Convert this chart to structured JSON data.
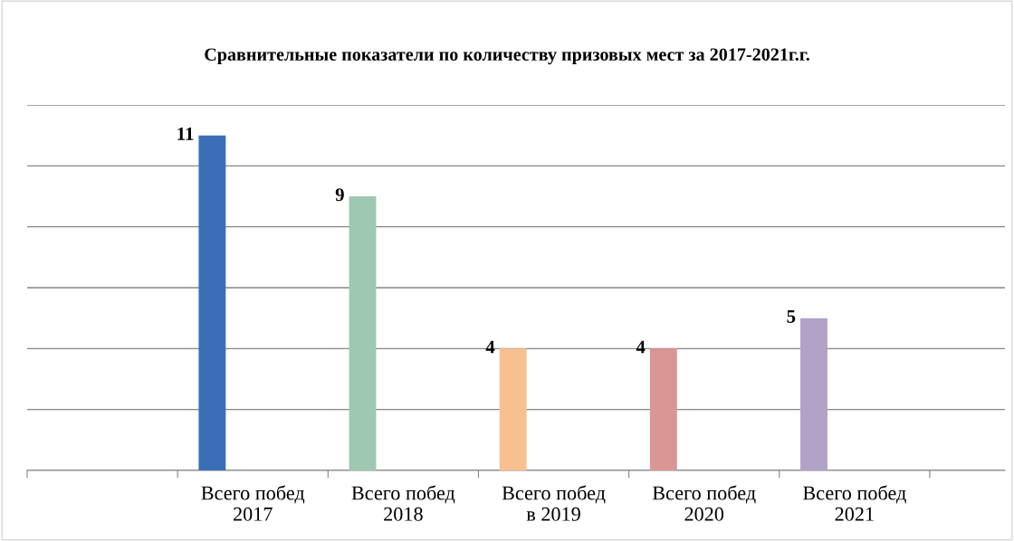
{
  "chart_data": {
    "type": "bar",
    "title": "Сравнительные показатели по количеству призовых мест за 2017-2021г.г.",
    "categories": [
      null,
      "Всего побед\n2017",
      "Всего побед\n2018",
      "Всего побед\nв 2019",
      "Всего побед\n2020",
      "Всего побед\n2021"
    ],
    "values": [
      null,
      11,
      9,
      4,
      4,
      5
    ],
    "colors": [
      "#3a6fb8",
      "#3a6fb8",
      "#9fc8b2",
      "#f8c08e",
      "#da9694",
      "#b3a2c7"
    ],
    "ylim": [
      0,
      12
    ],
    "yticks": [
      {
        "value": 0,
        "label": null
      },
      {
        "value": 2,
        "label": null
      },
      {
        "value": 4,
        "label": null
      },
      {
        "value": 6,
        "label": null
      },
      {
        "value": 8,
        "label": null
      },
      {
        "value": 10,
        "label": null
      },
      {
        "value": 12,
        "label": null
      }
    ],
    "grid": "y",
    "data_labels": true,
    "legend": false
  }
}
